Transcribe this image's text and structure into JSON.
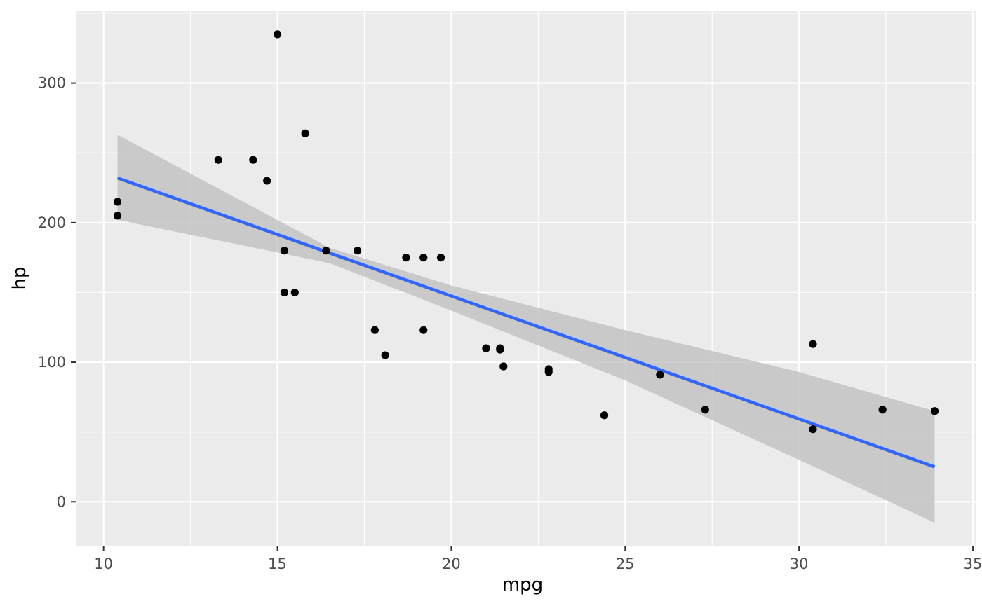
{
  "chart_data": {
    "type": "scatter",
    "xlabel": "mpg",
    "ylabel": "hp",
    "xlim": [
      9.2,
      35.1
    ],
    "ylim": [
      -32,
      352
    ],
    "x_ticks": [
      10,
      15,
      20,
      25,
      30,
      35
    ],
    "y_ticks": [
      0,
      100,
      200,
      300
    ],
    "x_tick_labels": [
      "10",
      "15",
      "20",
      "25",
      "30",
      "35"
    ],
    "y_tick_labels": [
      "0",
      "100",
      "200",
      "300"
    ],
    "grid": true,
    "points": [
      {
        "x": 21.0,
        "y": 110
      },
      {
        "x": 21.0,
        "y": 110
      },
      {
        "x": 22.8,
        "y": 93
      },
      {
        "x": 21.4,
        "y": 110
      },
      {
        "x": 18.7,
        "y": 175
      },
      {
        "x": 18.1,
        "y": 105
      },
      {
        "x": 14.3,
        "y": 245
      },
      {
        "x": 24.4,
        "y": 62
      },
      {
        "x": 22.8,
        "y": 95
      },
      {
        "x": 19.2,
        "y": 123
      },
      {
        "x": 17.8,
        "y": 123
      },
      {
        "x": 16.4,
        "y": 180
      },
      {
        "x": 17.3,
        "y": 180
      },
      {
        "x": 15.2,
        "y": 180
      },
      {
        "x": 10.4,
        "y": 205
      },
      {
        "x": 10.4,
        "y": 215
      },
      {
        "x": 14.7,
        "y": 230
      },
      {
        "x": 32.4,
        "y": 66
      },
      {
        "x": 30.4,
        "y": 52
      },
      {
        "x": 33.9,
        "y": 65
      },
      {
        "x": 21.5,
        "y": 97
      },
      {
        "x": 15.5,
        "y": 150
      },
      {
        "x": 15.2,
        "y": 150
      },
      {
        "x": 13.3,
        "y": 245
      },
      {
        "x": 19.2,
        "y": 175
      },
      {
        "x": 27.3,
        "y": 66
      },
      {
        "x": 26.0,
        "y": 91
      },
      {
        "x": 30.4,
        "y": 113
      },
      {
        "x": 15.8,
        "y": 264
      },
      {
        "x": 19.7,
        "y": 175
      },
      {
        "x": 15.0,
        "y": 335
      },
      {
        "x": 21.4,
        "y": 109
      }
    ],
    "fit_line": {
      "x": [
        10.4,
        33.9
      ],
      "y": [
        232,
        25
      ]
    },
    "confidence_band": {
      "x": [
        10.4,
        16.5,
        20.0,
        25.0,
        30.0,
        33.9
      ],
      "upper": [
        263,
        182,
        155,
        123,
        93,
        65
      ],
      "lower": [
        202,
        171,
        137,
        87,
        30,
        -15
      ]
    },
    "colors": {
      "panel_background": "#ebebeb",
      "grid_major": "#ffffff",
      "point": "#000000",
      "fit_line": "#3366ff",
      "band": "#c0c0c0"
    }
  }
}
